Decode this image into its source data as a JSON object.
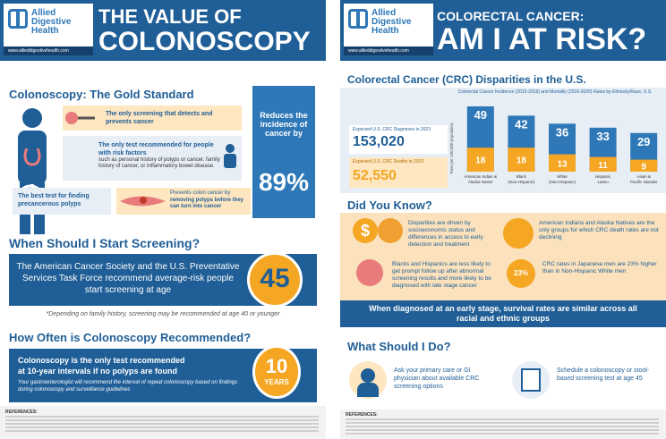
{
  "logo": {
    "line1": "Allied",
    "line2": "Digestive",
    "line3": "Health",
    "url": "www.allieddigestivehealth.com"
  },
  "left": {
    "title1": "THE VALUE OF",
    "title2": "COLONOSCOPY",
    "gold_title": "Colonoscopy: The Gold Standard",
    "b1": "The only screening that detects and prevents cancer",
    "b2": "The only test recommended for people with risk factors",
    "b2_sub": "such as personal history of polyps or cancer, family history of cancer, or inflammatory bowel disease.",
    "b3": "The best test for finding precancerous polyps",
    "b4a": "Prevents colon cancer by",
    "b4b": "removing polyps before they can turn into cancer",
    "reduces": "Reduces the incidence of cancer by",
    "pct": "89%",
    "when_title": "When Should I Start Screening?",
    "when_text": "The American Cancer Society and the U.S. Preventative Services Task Force recommend average-risk people start screening at age",
    "age": "45",
    "footnote": "*Depending on family history, screening may be recommended at age 40 or younger",
    "how_title": "How Often is Colonoscopy Recommended?",
    "how_text1": "Colonoscopy is the only test recommended",
    "how_text2": "at 10-year intervals if no polyps are found",
    "how_sub": "Your gastroenterologist will recommend the interval of repeat colonoscopy based on findings during colonoscopy and surveillance guidelines",
    "years_num": "10",
    "years_lbl": "YEARS",
    "refs_label": "REFERENCES:"
  },
  "right": {
    "title1": "COLORECTAL CANCER:",
    "title2": "AM I AT RISK?",
    "crc_title": "Colorectal Cancer (CRC) Disparities in the U.S.",
    "chart_title": "Colorectal Cancer Incidence (2015-2019) and Mortality (2016-2020) Rates by Ethnicity/Race, U.S.",
    "expected_dx_lbl": "Expected U.S. CRC Diagnoses in 2023",
    "expected_dx": "153,020",
    "expected_deaths_lbl": "Expected U.S. CRC Deaths in 2023",
    "expected_deaths": "52,550",
    "did_title": "Did You Know?",
    "dyk1": "Disparities are driven by socioeconomic status and differences in access to early detection and treatment",
    "dyk2": "American Indians and Alaska Natives are the only groups for which CRC death rates are not declining",
    "dyk3": "Blacks and Hispanics are less likely to get prompt follow up after abnormal screening results and more likely to be diagnosed with late stage cancer",
    "dyk4": "CRC rates in Japanese men are 23% higher than in Non-Hispanic White men",
    "dyk4_badge": "23%",
    "banner": "When diagnosed at an early stage, survival rates are similar across all racial and ethnic groups",
    "what_title": "What Should I Do?",
    "do1": "Ask your primary care or GI physician about available CRC screening options",
    "do2": "Schedule a colonoscopy or stool-based screening test at age 45",
    "refs_label": "REFERENCES:"
  },
  "chart_data": {
    "type": "bar",
    "title": "Colorectal Cancer Incidence (2015-2019) and Mortality (2016-2020) Rates by Ethnicity/Race, U.S.",
    "ylabel": "Rate per 100,000 population",
    "categories": [
      "American Indian & Alaska Native",
      "Black (Non-Hispanic)",
      "White (Non-Hispanic)",
      "Hispanic Latino",
      "Asian & Pacific Islander"
    ],
    "series": [
      {
        "values": [
          49,
          42,
          36,
          33,
          29
        ]
      },
      {
        "values": [
          18,
          18,
          13,
          11,
          9
        ]
      }
    ],
    "ylim": [
      0,
      55
    ],
    "colors": {
      "incidence": "#2e78b7",
      "mortality": "#f5a623"
    }
  },
  "colors": {
    "navy": "#1f5e96",
    "orange": "#f5a623",
    "light": "#e8eef6"
  }
}
